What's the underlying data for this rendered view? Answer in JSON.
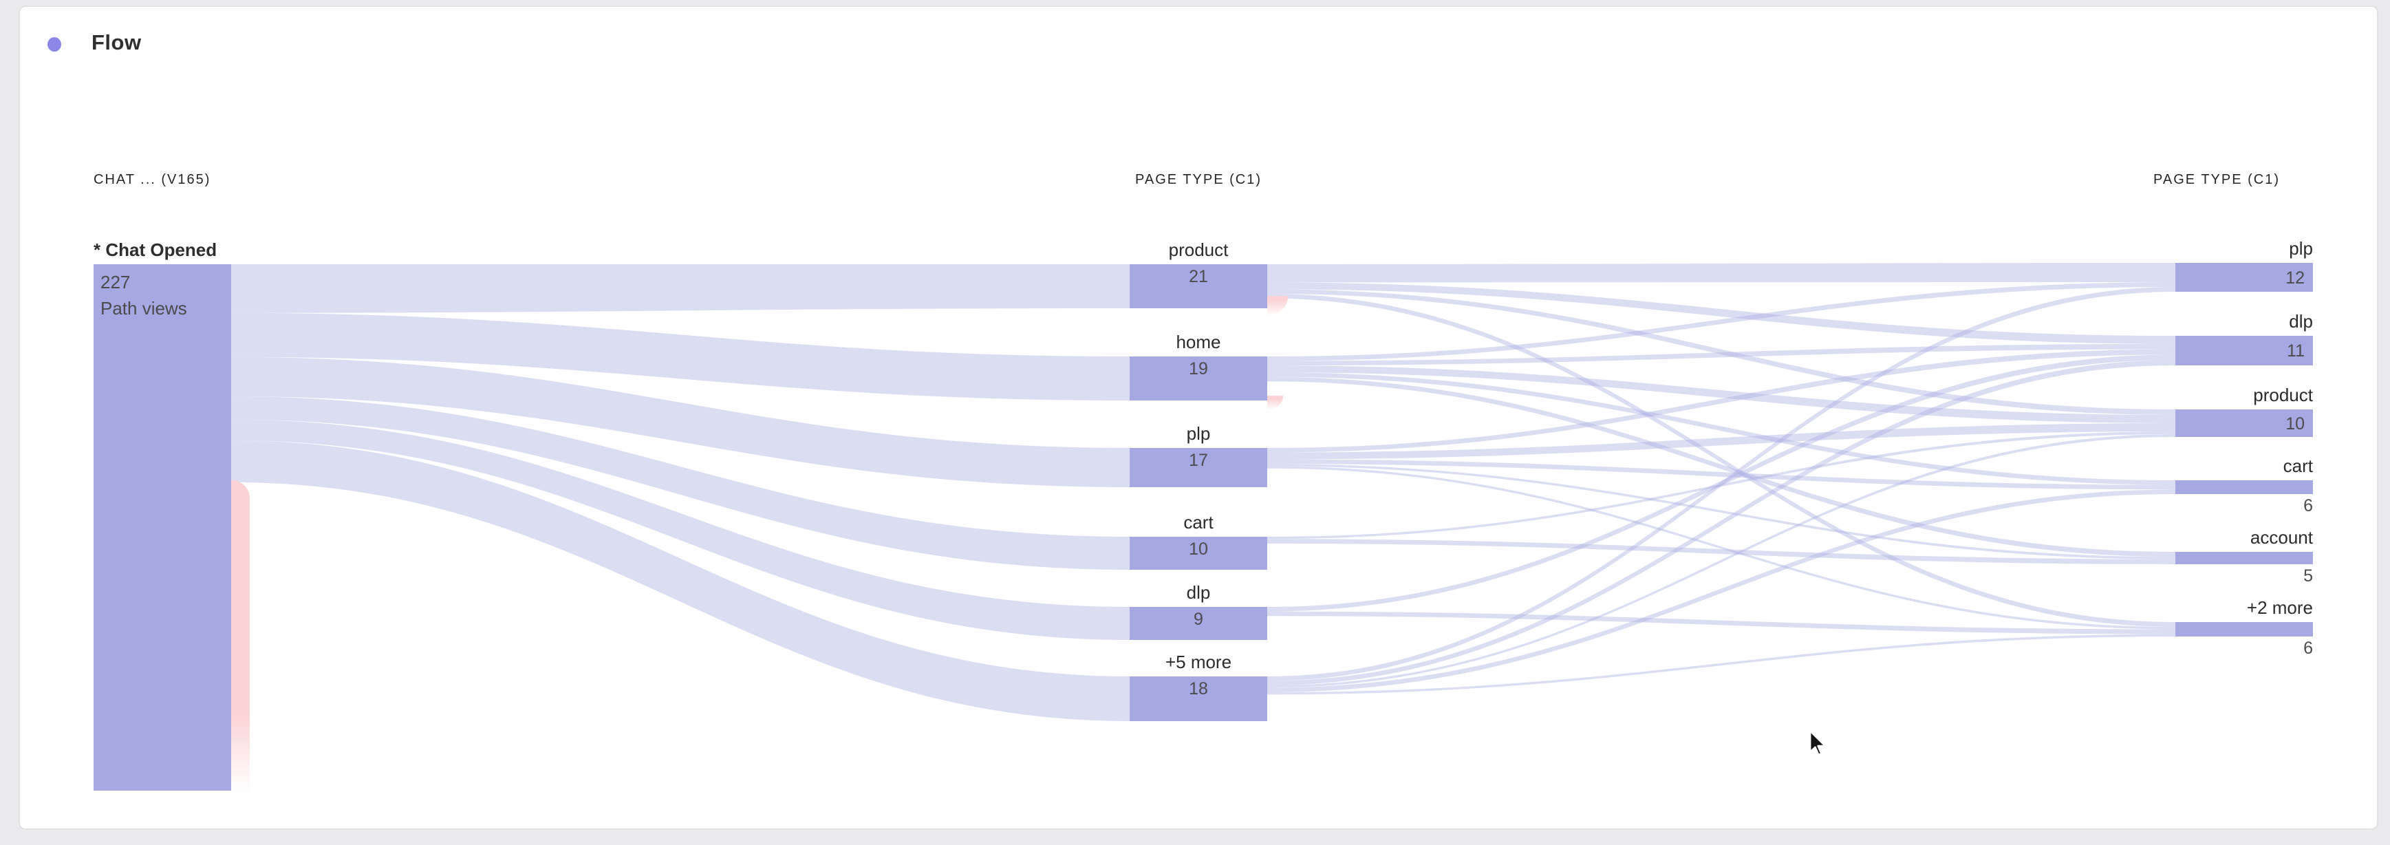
{
  "panel": {
    "title": "Flow",
    "accent_dot_color": "#8c87e9"
  },
  "columns": [
    {
      "header": "CHAT ... (V165)"
    },
    {
      "header": "PAGE TYPE (C1)"
    },
    {
      "header": "PAGE TYPE (C1)"
    }
  ],
  "chart_data": {
    "type": "sankey",
    "metric_label": "Path views",
    "col1": {
      "label": "* Chat Opened",
      "value": 227,
      "unit": "Path views"
    },
    "col2_nodes": [
      {
        "label": "product",
        "value": 21
      },
      {
        "label": "home",
        "value": 19
      },
      {
        "label": "plp",
        "value": 17
      },
      {
        "label": "cart",
        "value": 10
      },
      {
        "label": "dlp",
        "value": 9
      },
      {
        "label": "+5 more",
        "value": 18
      }
    ],
    "col3_nodes": [
      {
        "label": "plp",
        "value": 12
      },
      {
        "label": "dlp",
        "value": 11
      },
      {
        "label": "product",
        "value": 10
      },
      {
        "label": "cart",
        "value": 6
      },
      {
        "label": "account",
        "value": 5
      },
      {
        "label": "+2 more",
        "value": 6
      }
    ],
    "links_col1_col2": [
      {
        "source": "* Chat Opened",
        "target": "product",
        "value": 21
      },
      {
        "source": "* Chat Opened",
        "target": "home",
        "value": 19
      },
      {
        "source": "* Chat Opened",
        "target": "plp",
        "value": 17
      },
      {
        "source": "* Chat Opened",
        "target": "cart",
        "value": 10
      },
      {
        "source": "* Chat Opened",
        "target": "dlp",
        "value": 9
      },
      {
        "source": "* Chat Opened",
        "target": "+5 more",
        "value": 18
      }
    ],
    "col1_exit_value_estimated": 133,
    "links_col2_col3_estimated": true,
    "links_col2_col3": [
      {
        "source": "product",
        "target": "plp",
        "value": 8
      },
      {
        "source": "product",
        "target": "dlp",
        "value": 3
      },
      {
        "source": "product",
        "target": "product",
        "value": 2
      },
      {
        "source": "product",
        "target": "+2 more",
        "value": 2
      },
      {
        "source": "home",
        "target": "plp",
        "value": 2
      },
      {
        "source": "home",
        "target": "dlp",
        "value": 2
      },
      {
        "source": "home",
        "target": "product",
        "value": 3
      },
      {
        "source": "home",
        "target": "cart",
        "value": 2
      },
      {
        "source": "home",
        "target": "account",
        "value": 2
      },
      {
        "source": "plp",
        "target": "dlp",
        "value": 2
      },
      {
        "source": "plp",
        "target": "product",
        "value": 3
      },
      {
        "source": "plp",
        "target": "cart",
        "value": 2
      },
      {
        "source": "plp",
        "target": "account",
        "value": 1
      },
      {
        "source": "plp",
        "target": "+2 more",
        "value": 1
      },
      {
        "source": "cart",
        "target": "product",
        "value": 1
      },
      {
        "source": "cart",
        "target": "account",
        "value": 2
      },
      {
        "source": "dlp",
        "target": "dlp",
        "value": 2
      },
      {
        "source": "dlp",
        "target": "+2 more",
        "value": 2
      },
      {
        "source": "+5 more",
        "target": "plp",
        "value": 2
      },
      {
        "source": "+5 more",
        "target": "dlp",
        "value": 2
      },
      {
        "source": "+5 more",
        "target": "product",
        "value": 1
      },
      {
        "source": "+5 more",
        "target": "cart",
        "value": 2
      },
      {
        "source": "+5 more",
        "target": "+2 more",
        "value": 1
      }
    ],
    "node_exits_marked": [
      "* Chat Opened",
      "product",
      "home"
    ],
    "colors": {
      "node": "#a5a8e2",
      "ribbon": "#dcdef4",
      "exit": "#fbd2d5"
    },
    "legend_position": "none",
    "grid": false
  }
}
